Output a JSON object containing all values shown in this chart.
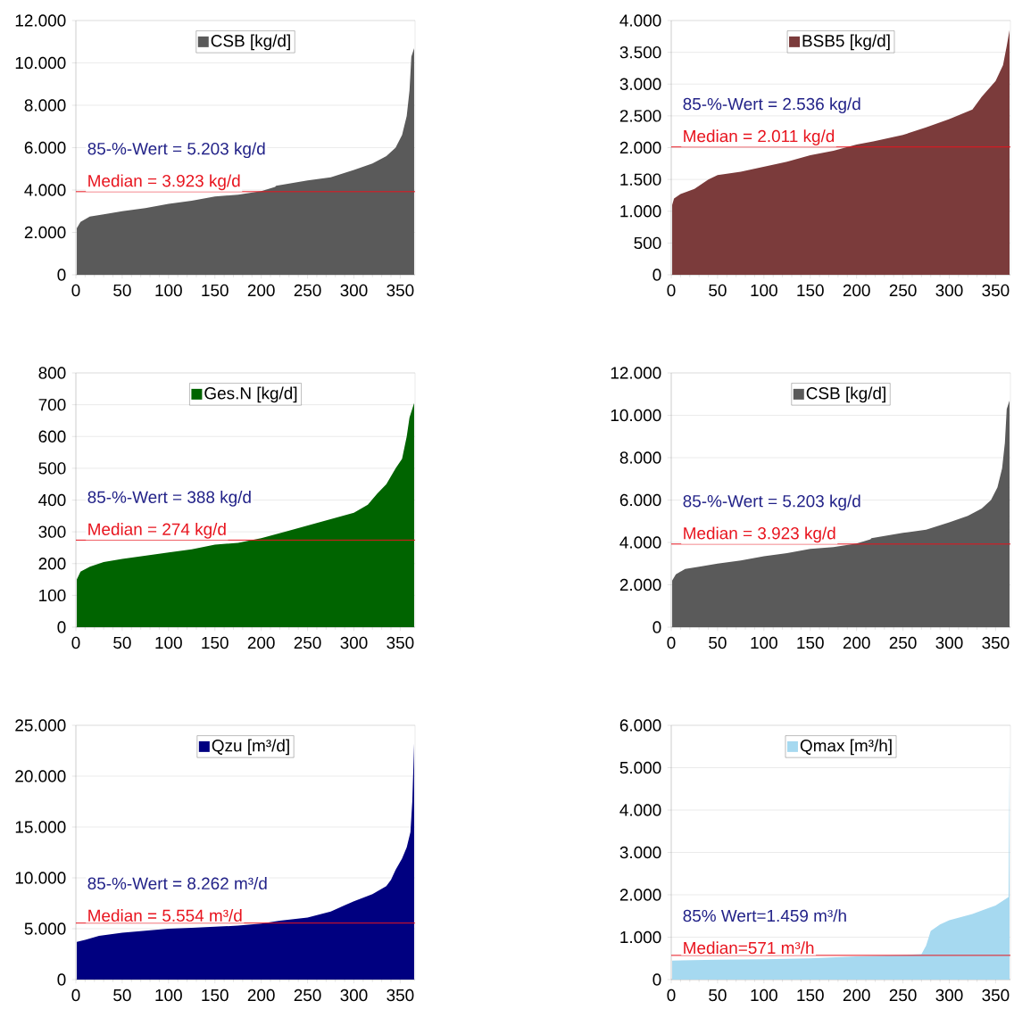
{
  "chart_data": [
    {
      "type": "area",
      "legend": "top",
      "grid": "y",
      "xlim": [
        0,
        366
      ],
      "xticks": [
        0,
        50,
        100,
        150,
        200,
        250,
        300,
        350
      ],
      "ylim": [
        0,
        12000
      ],
      "yticks": [
        0,
        {
          "value": 2000,
          "label": "2.000"
        },
        {
          "value": 4000,
          "label": "4.000"
        },
        {
          "value": 6000,
          "label": "6.000"
        },
        {
          "value": 8000,
          "label": "8.000"
        },
        {
          "value": 10000,
          "label": "10.000"
        },
        {
          "value": 12000,
          "label": "12.000"
        }
      ],
      "series": [
        {
          "name": "CSB [kg/d]",
          "color": "#5a5a5a",
          "x": [
            1,
            5,
            15,
            30,
            50,
            75,
            100,
            125,
            150,
            175,
            200,
            215,
            216,
            250,
            275,
            300,
            320,
            335,
            345,
            352,
            357,
            360,
            362,
            365
          ],
          "values": [
            2200,
            2500,
            2750,
            2850,
            3000,
            3150,
            3350,
            3500,
            3700,
            3780,
            3950,
            4150,
            4200,
            4450,
            4600,
            4950,
            5250,
            5600,
            6000,
            6600,
            7500,
            8700,
            10300,
            10700
          ]
        }
      ],
      "ref_lines": [
        {
          "axis": "y",
          "value": 3923,
          "label": "Median = 3.923 kg/d",
          "color": "#e8141e"
        }
      ],
      "annotations": [
        "85-%-Wert = 5.203 kg/d"
      ]
    },
    {
      "type": "area",
      "legend": "top",
      "grid": "y",
      "xlim": [
        0,
        366
      ],
      "xticks": [
        0,
        50,
        100,
        150,
        200,
        250,
        300,
        350
      ],
      "ylim": [
        0,
        4000
      ],
      "yticks": [
        0,
        500,
        {
          "value": 1000,
          "label": "1.000"
        },
        {
          "value": 1500,
          "label": "1.500"
        },
        {
          "value": 2000,
          "label": "2.000"
        },
        {
          "value": 2500,
          "label": "2.500"
        },
        {
          "value": 3000,
          "label": "3.000"
        },
        {
          "value": 3500,
          "label": "3.500"
        },
        {
          "value": 4000,
          "label": "4.000"
        }
      ],
      "series": [
        {
          "name": "BSB5 [kg/d]",
          "color": "#7b3b3b",
          "x": [
            1,
            3,
            10,
            25,
            40,
            50,
            75,
            100,
            125,
            150,
            175,
            200,
            218,
            250,
            275,
            300,
            325,
            335,
            350,
            358,
            362,
            365
          ],
          "values": [
            1100,
            1200,
            1270,
            1350,
            1500,
            1570,
            1620,
            1700,
            1780,
            1880,
            1950,
            2050,
            2100,
            2200,
            2320,
            2450,
            2600,
            2800,
            3050,
            3300,
            3600,
            3850
          ]
        }
      ],
      "ref_lines": [
        {
          "axis": "y",
          "value": 2011,
          "label": "Median = 2.011 kg/d",
          "color": "#e8141e"
        }
      ],
      "annotations": [
        "85-%-Wert = 2.536 kg/d"
      ]
    },
    {
      "type": "area",
      "legend": "top",
      "grid": "y",
      "xlim": [
        0,
        366
      ],
      "xticks": [
        0,
        50,
        100,
        150,
        200,
        250,
        300,
        350
      ],
      "ylim": [
        0,
        800
      ],
      "yticks": [
        0,
        100,
        200,
        300,
        400,
        500,
        600,
        700,
        800
      ],
      "series": [
        {
          "name": "Ges.N [kg/d]",
          "color": "#006400",
          "x": [
            1,
            5,
            15,
            30,
            50,
            75,
            100,
            125,
            150,
            175,
            200,
            225,
            250,
            275,
            300,
            315,
            325,
            335,
            345,
            352,
            357,
            360,
            365
          ],
          "values": [
            150,
            175,
            190,
            205,
            215,
            225,
            235,
            245,
            260,
            265,
            280,
            300,
            320,
            340,
            360,
            385,
            420,
            450,
            500,
            530,
            600,
            660,
            705
          ]
        }
      ],
      "ref_lines": [
        {
          "axis": "y",
          "value": 274,
          "label": "Median = 274 kg/d",
          "color": "#e8141e"
        }
      ],
      "annotations": [
        "85-%-Wert = 388 kg/d"
      ]
    },
    {
      "type": "area",
      "legend": "top",
      "grid": "y",
      "xlim": [
        0,
        366
      ],
      "xticks": [
        0,
        50,
        100,
        150,
        200,
        250,
        300,
        350
      ],
      "ylim": [
        0,
        12000
      ],
      "yticks": [
        0,
        {
          "value": 2000,
          "label": "2.000"
        },
        {
          "value": 4000,
          "label": "4.000"
        },
        {
          "value": 6000,
          "label": "6.000"
        },
        {
          "value": 8000,
          "label": "8.000"
        },
        {
          "value": 10000,
          "label": "10.000"
        },
        {
          "value": 12000,
          "label": "12.000"
        }
      ],
      "series": [
        {
          "name": "CSB [kg/d]",
          "color": "#5a5a5a",
          "x": [
            1,
            5,
            15,
            30,
            50,
            75,
            100,
            125,
            150,
            175,
            200,
            215,
            216,
            250,
            275,
            300,
            320,
            335,
            345,
            352,
            357,
            360,
            362,
            365
          ],
          "values": [
            2200,
            2500,
            2750,
            2850,
            3000,
            3150,
            3350,
            3500,
            3700,
            3780,
            3950,
            4150,
            4200,
            4450,
            4600,
            4950,
            5250,
            5600,
            6000,
            6600,
            7500,
            8700,
            10300,
            10700
          ]
        }
      ],
      "ref_lines": [
        {
          "axis": "y",
          "value": 3923,
          "label": "Median = 3.923 kg/d",
          "color": "#e8141e"
        }
      ],
      "annotations": [
        "85-%-Wert = 5.203 kg/d"
      ]
    },
    {
      "type": "area",
      "legend": "top",
      "grid": "y",
      "xlim": [
        0,
        366
      ],
      "xticks": [
        0,
        50,
        100,
        150,
        200,
        250,
        300,
        350
      ],
      "ylim": [
        0,
        25000
      ],
      "yticks": [
        0,
        {
          "value": 5000,
          "label": "5.000"
        },
        {
          "value": 10000,
          "label": "10.000"
        },
        {
          "value": 15000,
          "label": "15.000"
        },
        {
          "value": 20000,
          "label": "20.000"
        },
        {
          "value": 25000,
          "label": "25.000"
        }
      ],
      "series": [
        {
          "name": "Qzu [m³/d]",
          "color": "#000080",
          "x": [
            1,
            10,
            25,
            50,
            75,
            100,
            125,
            150,
            175,
            200,
            220,
            250,
            275,
            290,
            300,
            320,
            335,
            340,
            345,
            352,
            357,
            361,
            363,
            365
          ],
          "values": [
            3700,
            3900,
            4300,
            4600,
            4800,
            5000,
            5100,
            5200,
            5300,
            5500,
            5800,
            6100,
            6700,
            7300,
            7700,
            8400,
            9200,
            9800,
            10800,
            11900,
            13000,
            14500,
            17500,
            23200
          ]
        }
      ],
      "ref_lines": [
        {
          "axis": "y",
          "value": 5554,
          "label": "Median = 5.554 m³/d",
          "color": "#e8141e"
        }
      ],
      "annotations": [
        "85-%-Wert = 8.262 m³/d"
      ]
    },
    {
      "type": "area",
      "legend": "top",
      "grid": "y",
      "xlim": [
        0,
        366
      ],
      "xticks": [
        0,
        50,
        100,
        150,
        200,
        250,
        300,
        350
      ],
      "ylim": [
        0,
        6000
      ],
      "yticks": [
        0,
        {
          "value": 1000,
          "label": "1.000"
        },
        {
          "value": 2000,
          "label": "2.000"
        },
        {
          "value": 3000,
          "label": "3.000"
        },
        {
          "value": 4000,
          "label": "4.000"
        },
        {
          "value": 5000,
          "label": "5.000"
        },
        {
          "value": 6000,
          "label": "6.000"
        }
      ],
      "series": [
        {
          "name": "Qmax [m³/h]",
          "color": "#a6d9f0",
          "x": [
            1,
            50,
            100,
            150,
            200,
            250,
            270,
            275,
            280,
            290,
            300,
            325,
            350,
            364,
            365
          ],
          "values": [
            450,
            470,
            480,
            500,
            550,
            580,
            600,
            800,
            1150,
            1300,
            1400,
            1550,
            1750,
            1950,
            5200
          ]
        }
      ],
      "ref_lines": [
        {
          "axis": "y",
          "value": 571,
          "label": "Median=571 m³/h",
          "color": "#e8141e"
        }
      ],
      "annotations": [
        "85% Wert=1.459 m³/h"
      ]
    }
  ]
}
